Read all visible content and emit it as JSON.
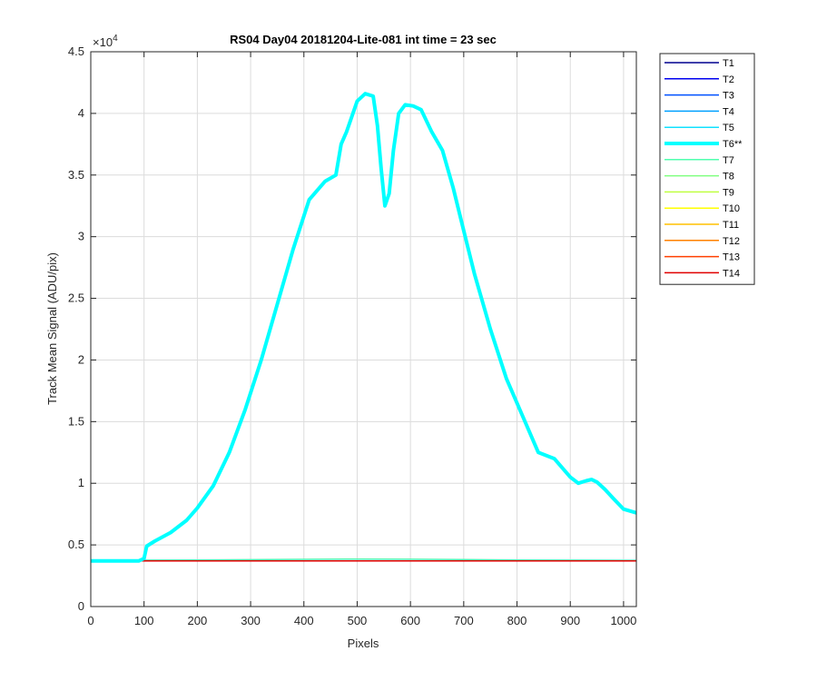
{
  "chart_data": {
    "type": "line",
    "title": "RS04 Day04 20181204-Lite-081 int time = 23 sec",
    "xlabel": "Pixels",
    "ylabel": "Track Mean Signal (ADU/pix)",
    "y_exponent_label": "×10",
    "y_exponent_value": "4",
    "xlim": [
      0,
      1024
    ],
    "ylim": [
      0,
      45000
    ],
    "x_ticks": [
      0,
      100,
      200,
      300,
      400,
      500,
      600,
      700,
      800,
      900,
      1000
    ],
    "y_ticks": [
      0,
      5000,
      10000,
      15000,
      20000,
      25000,
      30000,
      35000,
      40000,
      45000
    ],
    "y_tick_labels": [
      "0",
      "0.5",
      "1",
      "1.5",
      "2",
      "2.5",
      "3",
      "3.5",
      "4",
      "4.5"
    ],
    "grid": true,
    "legend_position": "outside-right-top",
    "series": [
      {
        "name": "T1",
        "color": "#00008F",
        "width": "normal",
        "x": [
          0,
          1024
        ],
        "y": [
          3700,
          3700
        ]
      },
      {
        "name": "T2",
        "color": "#0000EF",
        "width": "normal",
        "x": [
          0,
          1024
        ],
        "y": [
          3700,
          3700
        ]
      },
      {
        "name": "T3",
        "color": "#0050FF",
        "width": "normal",
        "x": [
          0,
          1024
        ],
        "y": [
          3700,
          3700
        ]
      },
      {
        "name": "T4",
        "color": "#00A0FF",
        "width": "normal",
        "x": [
          0,
          1024
        ],
        "y": [
          3700,
          3700
        ]
      },
      {
        "name": "T5",
        "color": "#10E0FF",
        "width": "normal",
        "x": [
          0,
          1024
        ],
        "y": [
          3700,
          3700
        ]
      },
      {
        "name": "T6**",
        "color": "#00FFFF",
        "width": "bold",
        "x": [
          0,
          90,
          100,
          105,
          120,
          150,
          180,
          200,
          230,
          260,
          290,
          320,
          350,
          380,
          410,
          440,
          460,
          470,
          480,
          500,
          515,
          530,
          538,
          545,
          552,
          560,
          568,
          578,
          590,
          605,
          620,
          640,
          660,
          680,
          700,
          720,
          750,
          780,
          810,
          840,
          870,
          900,
          915,
          930,
          940,
          950,
          965,
          980,
          1000,
          1024
        ],
        "y": [
          3700,
          3700,
          3900,
          4900,
          5300,
          6000,
          7000,
          8000,
          9800,
          12500,
          16000,
          20000,
          24500,
          29000,
          33000,
          34500,
          35000,
          37500,
          38500,
          41000,
          41600,
          41400,
          39000,
          35500,
          32500,
          33500,
          37000,
          40000,
          40700,
          40600,
          40300,
          38500,
          37000,
          34000,
          30500,
          27000,
          22500,
          18500,
          15500,
          12500,
          12000,
          10500,
          10000,
          10200,
          10300,
          10100,
          9500,
          8800,
          7900,
          7600
        ]
      },
      {
        "name": "T7",
        "color": "#50FFAF",
        "width": "normal",
        "x": [
          0,
          100,
          200,
          300,
          400,
          500,
          600,
          700,
          800,
          900,
          1024
        ],
        "y": [
          3750,
          3760,
          3780,
          3800,
          3830,
          3850,
          3840,
          3810,
          3780,
          3760,
          3750
        ]
      },
      {
        "name": "T8",
        "color": "#80FF80",
        "width": "normal",
        "x": [
          0,
          1024
        ],
        "y": [
          3700,
          3700
        ]
      },
      {
        "name": "T9",
        "color": "#BFFF40",
        "width": "normal",
        "x": [
          0,
          1024
        ],
        "y": [
          3700,
          3700
        ]
      },
      {
        "name": "T10",
        "color": "#FFFF00",
        "width": "normal",
        "x": [
          0,
          1024
        ],
        "y": [
          3700,
          3700
        ]
      },
      {
        "name": "T11",
        "color": "#FFC000",
        "width": "normal",
        "x": [
          0,
          1024
        ],
        "y": [
          3700,
          3700
        ]
      },
      {
        "name": "T12",
        "color": "#FF8000",
        "width": "normal",
        "x": [
          0,
          1024
        ],
        "y": [
          3700,
          3700
        ]
      },
      {
        "name": "T13",
        "color": "#FF4000",
        "width": "normal",
        "x": [
          0,
          1024
        ],
        "y": [
          3700,
          3700
        ]
      },
      {
        "name": "T14",
        "color": "#E00000",
        "width": "normal",
        "x": [
          0,
          1024
        ],
        "y": [
          3700,
          3700
        ]
      }
    ]
  }
}
